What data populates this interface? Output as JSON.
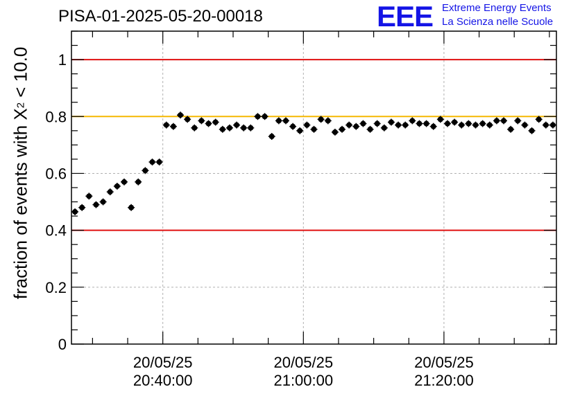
{
  "title": "PISA-01-2025-05-20-00018",
  "logo": {
    "mark": "EEE",
    "line1": "Extreme Energy Events",
    "line2": "La Scienza nelle Scuole",
    "color": "#1414e6"
  },
  "chart_data": {
    "type": "scatter",
    "ylabel_pre": "fraction of events with X",
    "ylabel_sup": "2",
    "ylabel_post": " < 10.0",
    "xlabel": "",
    "ylim": [
      0,
      1.1
    ],
    "y_ticks": [
      "0",
      "0.2",
      "0.4",
      "0.6",
      "0.8",
      "1"
    ],
    "y_tick_values": [
      0,
      0.2,
      0.4,
      0.6,
      0.8,
      1.0
    ],
    "x_ticks": [
      {
        "date": "20/05/25",
        "time": "20:40:00"
      },
      {
        "date": "20/05/25",
        "time": "21:00:00"
      },
      {
        "date": "20/05/25",
        "time": "21:20:00"
      }
    ],
    "x_range": [
      "20/05/25 20:27:00",
      "20/05/25 21:36:00"
    ],
    "grid": true,
    "reference_lines": [
      {
        "y": 1.0,
        "color": "#e01010"
      },
      {
        "y": 0.8,
        "color": "#f5b800"
      },
      {
        "y": 0.4,
        "color": "#e01010"
      }
    ],
    "series": [
      {
        "color": "#000000",
        "x_minutes_after_20_27": [
          0.5,
          1.5,
          2.5,
          3.5,
          4.5,
          5.5,
          6.5,
          7.5,
          8.5,
          9.5,
          10.5,
          11.5,
          12.5,
          13.5,
          14.5,
          15.5,
          16.5,
          17.5,
          18.5,
          19.5,
          20.5,
          21.5,
          22.5,
          23.5,
          24.5,
          25.5,
          26.5,
          27.5,
          28.5,
          29.5,
          30.5,
          31.5,
          32.5,
          33.5,
          34.5,
          35.5,
          36.5,
          37.5,
          38.5,
          39.5,
          40.5,
          41.5,
          42.5,
          43.5,
          44.5,
          45.5,
          46.5,
          47.5,
          48.5,
          49.5,
          50.5,
          51.5,
          52.5,
          53.5,
          54.5,
          55.5,
          56.5,
          57.5,
          58.5,
          59.5,
          60.5,
          61.5,
          62.5,
          63.5,
          64.5,
          65.5,
          66.5,
          67.5,
          68.5
        ],
        "values": [
          0.465,
          0.48,
          0.52,
          0.49,
          0.5,
          0.535,
          0.555,
          0.57,
          0.48,
          0.57,
          0.61,
          0.64,
          0.64,
          0.77,
          0.765,
          0.805,
          0.79,
          0.76,
          0.785,
          0.775,
          0.78,
          0.755,
          0.76,
          0.77,
          0.76,
          0.76,
          0.8,
          0.8,
          0.73,
          0.785,
          0.785,
          0.765,
          0.75,
          0.77,
          0.755,
          0.79,
          0.785,
          0.745,
          0.755,
          0.77,
          0.765,
          0.775,
          0.755,
          0.775,
          0.76,
          0.78,
          0.77,
          0.77,
          0.785,
          0.775,
          0.775,
          0.765,
          0.79,
          0.775,
          0.78,
          0.77,
          0.775,
          0.77,
          0.775,
          0.77,
          0.785,
          0.785,
          0.755,
          0.785,
          0.77,
          0.75,
          0.79,
          0.77,
          0.77
        ],
        "errors": [
          0.012,
          0.012,
          0.012,
          0.012,
          0.012,
          0.012,
          0.012,
          0.012,
          0.012,
          0.012,
          0.012,
          0.012,
          0.012,
          0.012,
          0.012,
          0.012,
          0.012,
          0.012,
          0.012,
          0.012,
          0.012,
          0.012,
          0.012,
          0.012,
          0.012,
          0.012,
          0.012,
          0.012,
          0.012,
          0.012,
          0.012,
          0.012,
          0.012,
          0.012,
          0.012,
          0.012,
          0.012,
          0.012,
          0.012,
          0.012,
          0.012,
          0.012,
          0.012,
          0.012,
          0.012,
          0.012,
          0.012,
          0.012,
          0.012,
          0.012,
          0.012,
          0.012,
          0.012,
          0.012,
          0.012,
          0.012,
          0.012,
          0.012,
          0.012,
          0.012,
          0.012,
          0.012,
          0.012,
          0.012,
          0.012,
          0.012,
          0.012,
          0.012,
          0.012
        ]
      }
    ]
  }
}
